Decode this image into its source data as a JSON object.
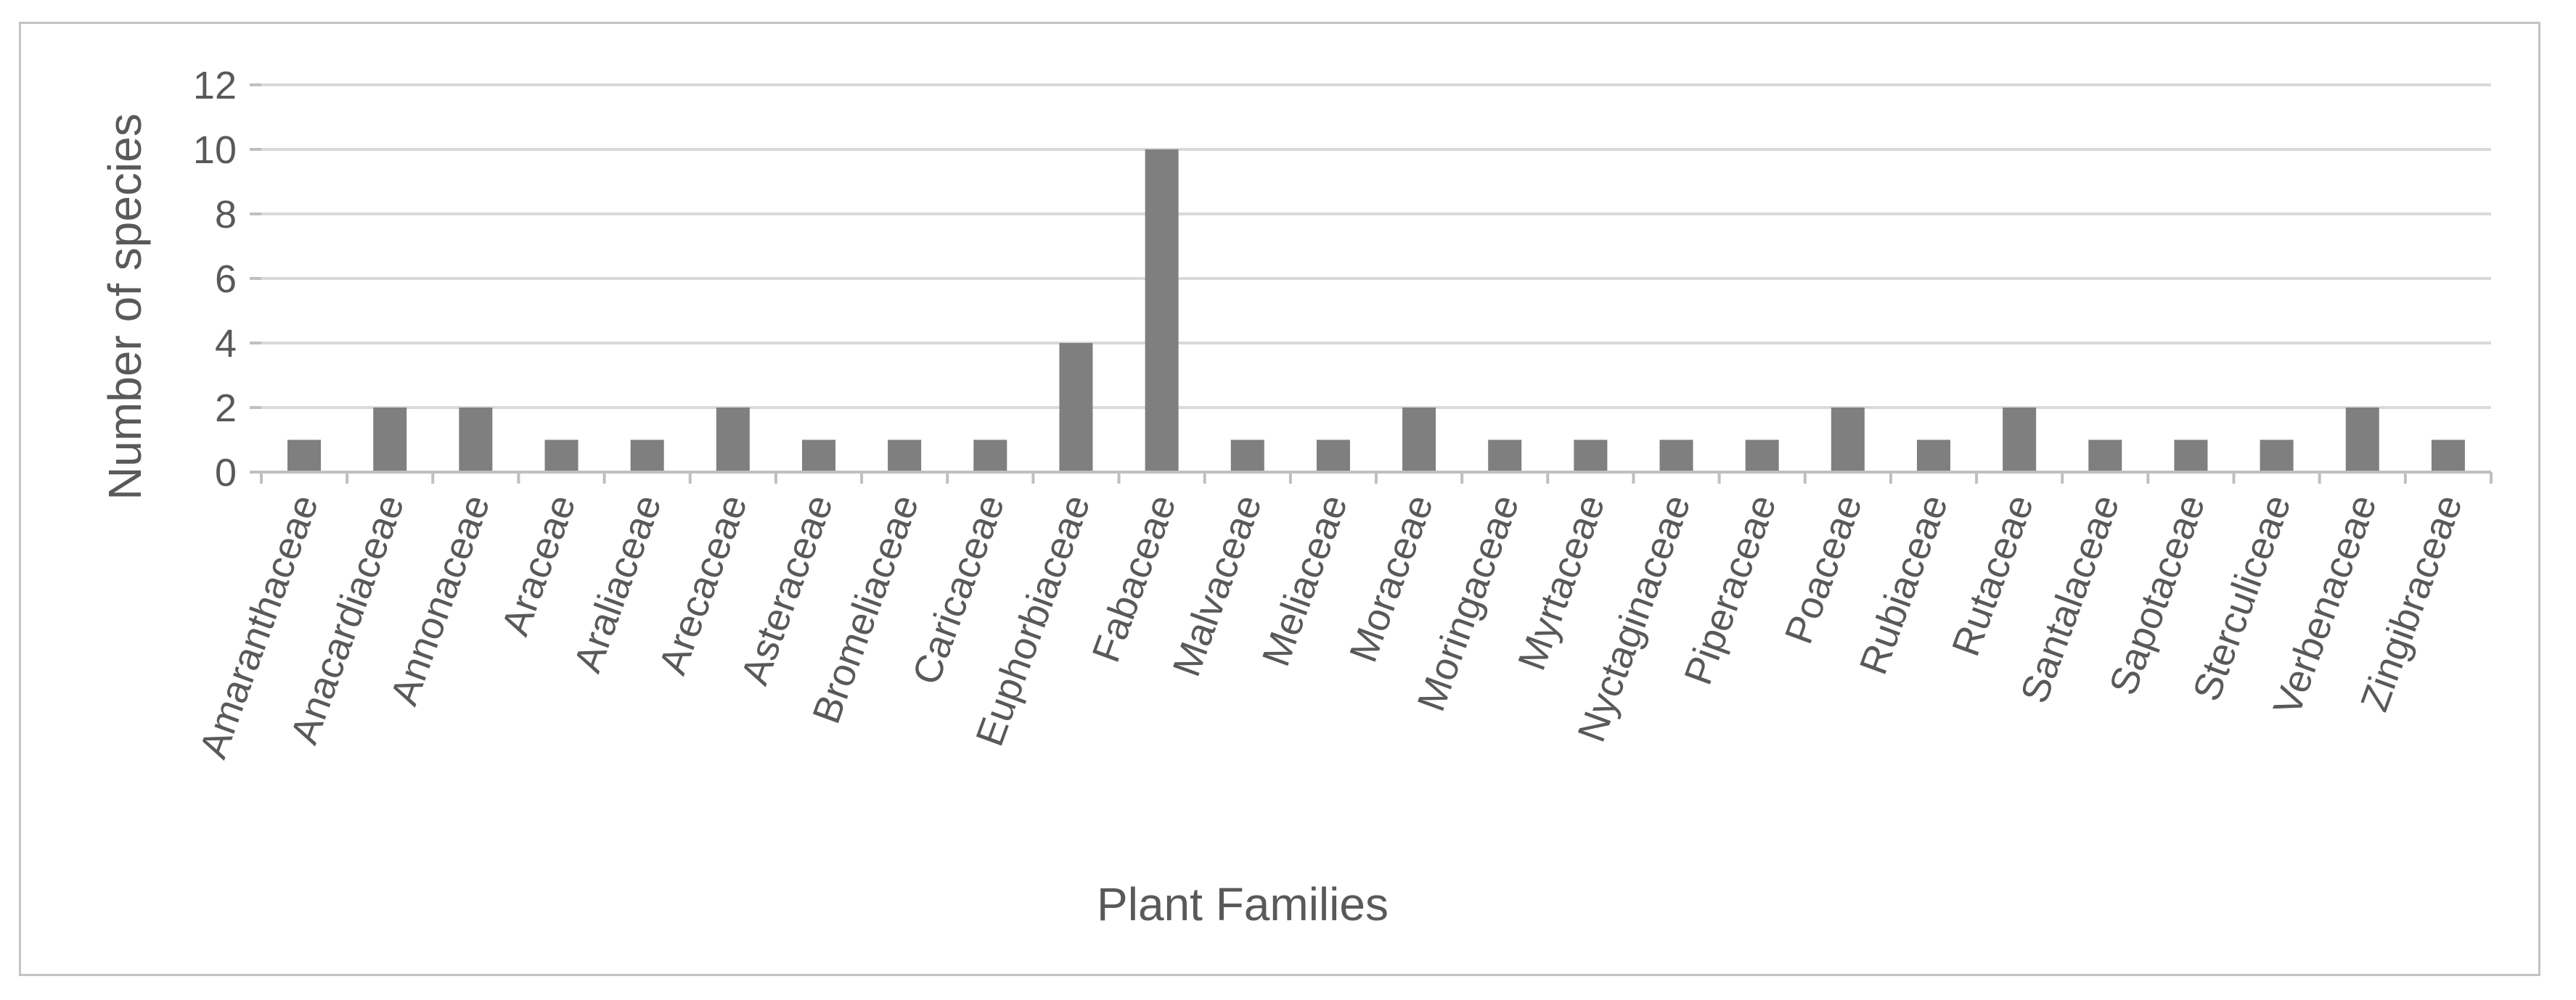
{
  "chart_data": {
    "type": "bar",
    "title": "",
    "xlabel": "Plant Families",
    "ylabel": "Number of species",
    "ylim": [
      0,
      12
    ],
    "yticks": [
      0,
      2,
      4,
      6,
      8,
      10,
      12
    ],
    "grid": true,
    "legend": "none",
    "categories": [
      "Amaranthaceae",
      "Anacardiaceae",
      "Annonaceae",
      "Araceae",
      "Araliaceae",
      "Arecaceae",
      "Asteraceae",
      "Bromeliaceae",
      "Caricaceae",
      "Euphorbiaceae",
      "Fabaceae",
      "Malvaceae",
      "Meliaceae",
      "Moraceae",
      "Moringaceae",
      "Myrtaceae",
      "Nyctaginaceae",
      "Piperaceae",
      "Poaceae",
      "Rubiaceae",
      "Rutaceae",
      "Santalaceae",
      "Sapotaceae",
      "Sterculiceae",
      "Verbenaceae",
      "Zingibraceae"
    ],
    "values": [
      1,
      2,
      2,
      1,
      1,
      2,
      1,
      1,
      1,
      4,
      10,
      1,
      1,
      2,
      1,
      1,
      1,
      1,
      2,
      1,
      2,
      1,
      1,
      1,
      2,
      1
    ],
    "colors": {
      "bar": "#7f7f7f",
      "grid": "#d9d9d9",
      "axis": "#bfbfbf",
      "text": "#595959",
      "frame": "#c3c3c3"
    }
  }
}
